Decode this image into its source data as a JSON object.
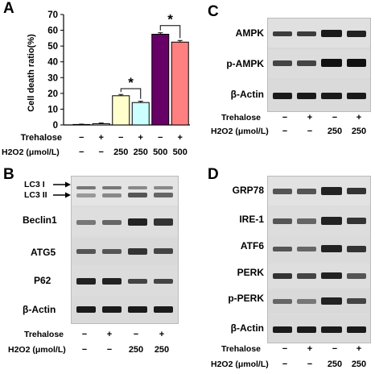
{
  "panels": {
    "A": "A",
    "B": "B",
    "C": "C",
    "D": "D"
  },
  "conditions_short": {
    "trehalose_label": "Trehalose",
    "h2o2_label": "H2O2 (μmol/L)",
    "trehalose": [
      "−",
      "+",
      "−",
      "+"
    ],
    "h2o2": [
      "−",
      "−",
      "250",
      "250"
    ]
  },
  "chart_data": {
    "type": "bar",
    "title": "",
    "ylabel": "Cell death ratio(%)",
    "xlabel": "",
    "ylim": [
      0,
      70
    ],
    "yticks": [
      "0",
      "10",
      "20",
      "30",
      "40",
      "50",
      "60",
      "70"
    ],
    "trehalose_label": "Trehalose",
    "h2o2_label": "H2O2 (μmol/L)",
    "trehalose": [
      "−",
      "+",
      "−",
      "+",
      "−",
      "+"
    ],
    "h2o2": [
      "−",
      "−",
      "250",
      "250",
      "500",
      "500"
    ],
    "values": [
      0.3,
      0.8,
      18.5,
      14.2,
      57.5,
      52.5
    ],
    "errors": [
      0.2,
      0.4,
      0.8,
      0.8,
      0.9,
      1.0
    ],
    "colors": [
      "#ffffff",
      "#ffffff",
      "#ffffcc",
      "#ccffff",
      "#660066",
      "#ff8080"
    ],
    "significance": [
      "*",
      "*"
    ]
  },
  "blots": {
    "B": [
      "LC3 I",
      "LC3 II",
      "Beclin1",
      "ATG5",
      "P62",
      "β-Actin"
    ],
    "C": [
      "AMPK",
      "p-AMPK",
      "β-Actin"
    ],
    "D": [
      "GRP78",
      "IRE-1",
      "ATF6",
      "PERK",
      "p-PERK",
      "β-Actin"
    ]
  }
}
